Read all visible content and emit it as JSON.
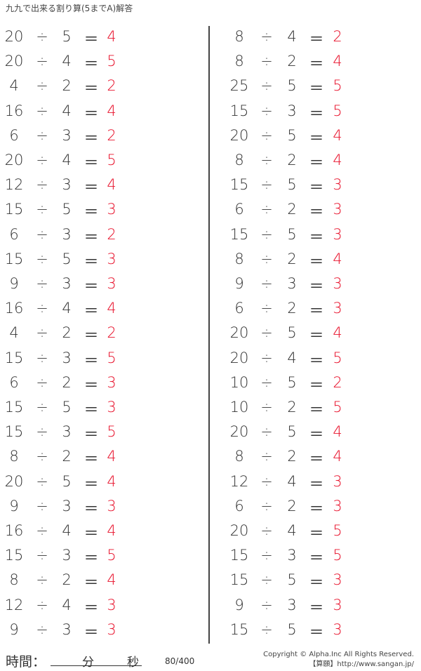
{
  "title": "九九で出来る割り算(5までA)解答",
  "operators": {
    "divide": "÷",
    "equals": "＝"
  },
  "colors": {
    "answer": "#e8102a",
    "text": "#333333"
  },
  "left_column": [
    [
      20,
      5,
      4
    ],
    [
      20,
      4,
      5
    ],
    [
      4,
      2,
      2
    ],
    [
      16,
      4,
      4
    ],
    [
      6,
      3,
      2
    ],
    [
      20,
      4,
      5
    ],
    [
      12,
      3,
      4
    ],
    [
      15,
      5,
      3
    ],
    [
      6,
      3,
      2
    ],
    [
      15,
      5,
      3
    ],
    [
      9,
      3,
      3
    ],
    [
      16,
      4,
      4
    ],
    [
      4,
      2,
      2
    ],
    [
      15,
      3,
      5
    ],
    [
      6,
      2,
      3
    ],
    [
      15,
      5,
      3
    ],
    [
      15,
      3,
      5
    ],
    [
      8,
      2,
      4
    ],
    [
      20,
      5,
      4
    ],
    [
      9,
      3,
      3
    ],
    [
      16,
      4,
      4
    ],
    [
      15,
      3,
      5
    ],
    [
      8,
      2,
      4
    ],
    [
      12,
      4,
      3
    ],
    [
      9,
      3,
      3
    ]
  ],
  "right_column": [
    [
      8,
      4,
      2
    ],
    [
      8,
      2,
      4
    ],
    [
      25,
      5,
      5
    ],
    [
      15,
      3,
      5
    ],
    [
      20,
      5,
      4
    ],
    [
      8,
      2,
      4
    ],
    [
      15,
      5,
      3
    ],
    [
      6,
      2,
      3
    ],
    [
      15,
      5,
      3
    ],
    [
      8,
      2,
      4
    ],
    [
      9,
      3,
      3
    ],
    [
      6,
      2,
      3
    ],
    [
      20,
      5,
      4
    ],
    [
      20,
      4,
      5
    ],
    [
      10,
      5,
      2
    ],
    [
      10,
      2,
      5
    ],
    [
      20,
      5,
      4
    ],
    [
      8,
      2,
      4
    ],
    [
      12,
      4,
      3
    ],
    [
      6,
      2,
      3
    ],
    [
      20,
      4,
      5
    ],
    [
      15,
      3,
      5
    ],
    [
      15,
      5,
      3
    ],
    [
      9,
      3,
      3
    ],
    [
      15,
      5,
      3
    ]
  ],
  "footer": {
    "time_label": "時間：",
    "minutes": "分",
    "seconds": "秒",
    "count": "80/400",
    "copyright": "Copyright © Alpha.Inc All Rights Reserved.",
    "site": "【算願】http://www.sangan.jp/"
  }
}
